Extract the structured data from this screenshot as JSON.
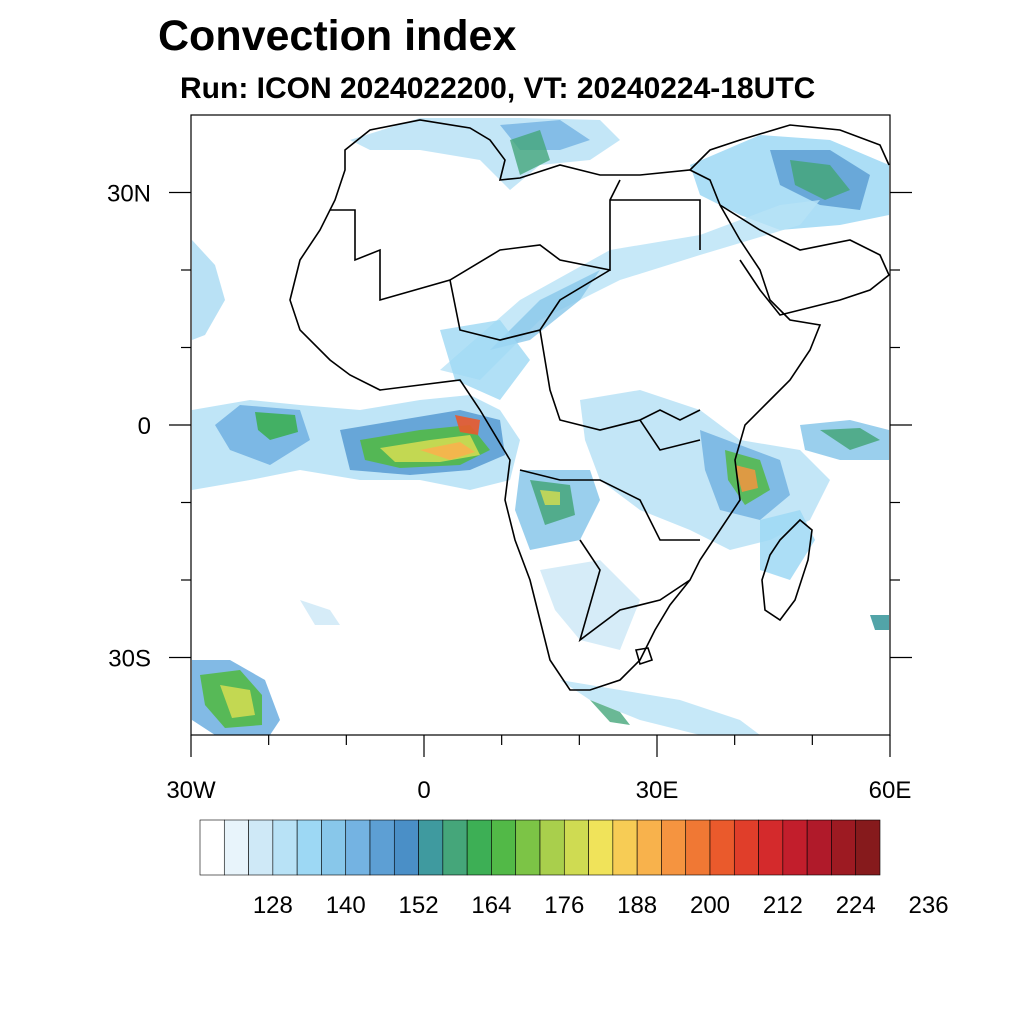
{
  "title": "Convection index",
  "subtitle": "Run: ICON 2024022200,  VT: 20240224-18UTC",
  "map": {
    "lon_range": [
      -30,
      60
    ],
    "lat_range": [
      -40,
      40
    ],
    "lat_ticks": [
      {
        "value": 30,
        "label": "30N"
      },
      {
        "value": 0,
        "label": "0"
      },
      {
        "value": -30,
        "label": "30S"
      }
    ],
    "lon_ticks": [
      {
        "value": -30,
        "label": "30W"
      },
      {
        "value": 0,
        "label": "0"
      },
      {
        "value": 30,
        "label": "30E"
      },
      {
        "value": 60,
        "label": "60E"
      }
    ]
  },
  "colorbar": {
    "colors": [
      "#ffffff",
      "#e8f4fb",
      "#cfe9f7",
      "#b8e2f6",
      "#9dd8f4",
      "#88c7ea",
      "#74b3e2",
      "#5d9fd4",
      "#4a8fc7",
      "#3f9a9f",
      "#45a67a",
      "#3daf55",
      "#52b947",
      "#7cc446",
      "#a9cf4c",
      "#cfdb52",
      "#f0e35a",
      "#f7cc55",
      "#f8b24c",
      "#f59440",
      "#f07834",
      "#ea5a2c",
      "#e03e2a",
      "#d42a2c",
      "#c21e2c",
      "#b01a2a",
      "#9d1a22",
      "#861a1c"
    ],
    "labels": [
      "128",
      "140",
      "152",
      "164",
      "176",
      "188",
      "200",
      "212",
      "224",
      "236"
    ]
  }
}
